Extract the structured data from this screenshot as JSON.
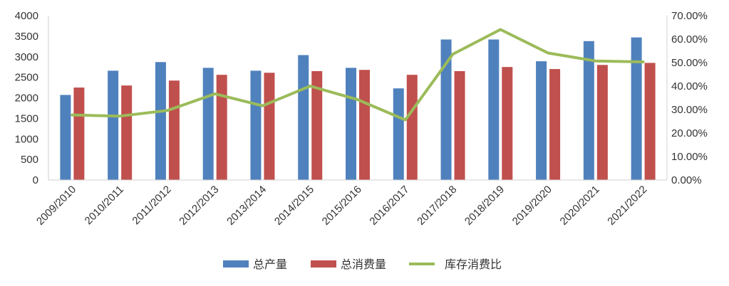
{
  "chart_data": {
    "type": "bar",
    "categories": [
      "2009/2010",
      "2010/2011",
      "2011/2012",
      "2012/2013",
      "2013/2014",
      "2014/2015",
      "2015/2016",
      "2016/2017",
      "2017/2018",
      "2018/2019",
      "2019/2020",
      "2020/2021",
      "2021/2022"
    ],
    "series": [
      {
        "name": "总产量",
        "type": "bar",
        "axis": "left",
        "color": "#4F81BD",
        "values": [
          2070,
          2660,
          2870,
          2730,
          2660,
          3040,
          2730,
          2230,
          3420,
          3420,
          2890,
          3380,
          3470
        ]
      },
      {
        "name": "总消费量",
        "type": "bar",
        "axis": "left",
        "color": "#C0504D",
        "values": [
          2250,
          2300,
          2420,
          2560,
          2610,
          2650,
          2680,
          2560,
          2650,
          2750,
          2700,
          2800,
          2850
        ]
      },
      {
        "name": "库存消费比",
        "type": "line",
        "axis": "right",
        "color": "#9BBB59",
        "values": [
          27.7,
          27.2,
          29.6,
          36.7,
          31.6,
          40.0,
          34.2,
          25.6,
          53.6,
          64.1,
          54.1,
          50.7,
          50.3
        ]
      }
    ],
    "ylim_left": [
      0,
      4000
    ],
    "yticks_left": [
      "0",
      "500",
      "1000",
      "1500",
      "2000",
      "2500",
      "3000",
      "3500",
      "4000"
    ],
    "ylim_right": [
      0,
      70
    ],
    "yticks_right": [
      "0.00%",
      "10.00%",
      "20.00%",
      "30.00%",
      "40.00%",
      "50.00%",
      "60.00%",
      "70.00%"
    ],
    "grid": false,
    "legend_position": "bottom"
  }
}
